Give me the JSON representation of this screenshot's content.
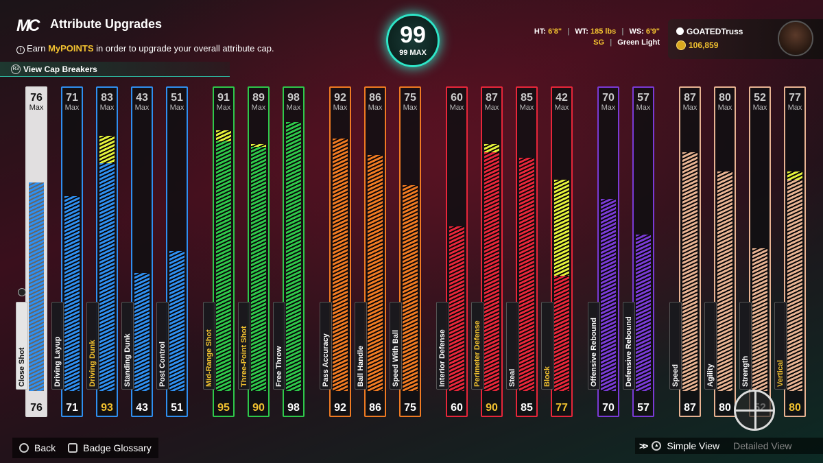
{
  "header": {
    "title": "Attribute Upgrades",
    "info_prefix": "Earn ",
    "info_highlight": "MyPOINTS",
    "info_suffix": " in order to upgrade your overall attribute cap.",
    "cap_breakers_label": "View Cap Breakers"
  },
  "overall": {
    "value": "99",
    "max_label": "99 MAX"
  },
  "player": {
    "ht_label": "HT:",
    "ht": "6'8\"",
    "wt_label": "WT:",
    "wt": "185 lbs",
    "ws_label": "WS:",
    "ws": "6'9\"",
    "position": "SG",
    "shot_setting": "Green Light",
    "gamertag": "GOATEDTruss",
    "vc": "106,859"
  },
  "attributes": [
    {
      "name": "Close Shot",
      "cap": 76,
      "value": 76,
      "boost": 0,
      "group": "close"
    },
    {
      "name": "Driving Layup",
      "cap": 71,
      "value": 71,
      "boost": 0,
      "group": "finishing"
    },
    {
      "name": "Driving Dunk",
      "cap": 83,
      "value": 93,
      "boost": 10,
      "group": "finishing"
    },
    {
      "name": "Standing Dunk",
      "cap": 43,
      "value": 43,
      "boost": 0,
      "group": "finishing"
    },
    {
      "name": "Post Control",
      "cap": 51,
      "value": 51,
      "boost": 0,
      "group": "finishing"
    },
    {
      "name": "Mid-Range Shot",
      "cap": 91,
      "value": 95,
      "boost": 4,
      "group": "shooting"
    },
    {
      "name": "Three-Point Shot",
      "cap": 89,
      "value": 90,
      "boost": 1,
      "group": "shooting"
    },
    {
      "name": "Free Throw",
      "cap": 98,
      "value": 98,
      "boost": 0,
      "group": "shooting"
    },
    {
      "name": "Pass Accuracy",
      "cap": 92,
      "value": 92,
      "boost": 0,
      "group": "playmaking"
    },
    {
      "name": "Ball Handle",
      "cap": 86,
      "value": 86,
      "boost": 0,
      "group": "playmaking"
    },
    {
      "name": "Speed With Ball",
      "cap": 75,
      "value": 75,
      "boost": 0,
      "group": "playmaking"
    },
    {
      "name": "Interior Defense",
      "cap": 60,
      "value": 60,
      "boost": 0,
      "group": "defense"
    },
    {
      "name": "Perimeter Defense",
      "cap": 87,
      "value": 90,
      "boost": 3,
      "group": "defense"
    },
    {
      "name": "Steal",
      "cap": 85,
      "value": 85,
      "boost": 0,
      "group": "defense"
    },
    {
      "name": "Block",
      "cap": 42,
      "value": 77,
      "boost": 35,
      "group": "defense"
    },
    {
      "name": "Offensive Rebound",
      "cap": 70,
      "value": 70,
      "boost": 0,
      "group": "rebounding"
    },
    {
      "name": "Defensive Rebound",
      "cap": 57,
      "value": 57,
      "boost": 0,
      "group": "rebounding"
    },
    {
      "name": "Speed",
      "cap": 87,
      "value": 87,
      "boost": 0,
      "group": "physical"
    },
    {
      "name": "Agility",
      "cap": 80,
      "value": 80,
      "boost": 0,
      "group": "physical"
    },
    {
      "name": "Strength",
      "cap": 52,
      "value": 52,
      "boost": 0,
      "group": "physical"
    },
    {
      "name": "Vertical",
      "cap": 77,
      "value": 80,
      "boost": 3,
      "group": "physical"
    }
  ],
  "max_label": "Max",
  "group_colors": {
    "close": "#2f8ff0",
    "finishing": "#2f8ff0",
    "shooting": "#2ec84a",
    "playmaking": "#f07a22",
    "defense": "#e8263a",
    "rebounding": "#7a3ad6",
    "physical": "#e8b392"
  },
  "boost_color": "#e4f23a",
  "bottom": {
    "back_label": "Back",
    "glossary_label": "Badge Glossary",
    "simple_view_label": "Simple View",
    "detailed_view_label": "Detailed View"
  }
}
